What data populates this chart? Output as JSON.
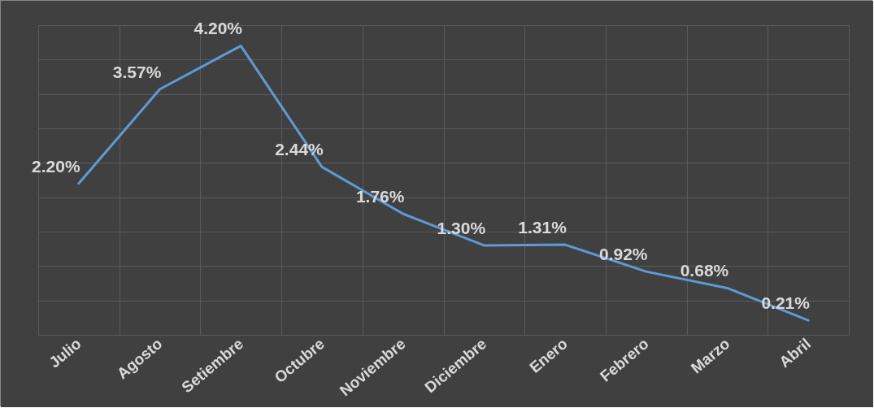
{
  "chart_data": {
    "type": "line",
    "categories": [
      "Julio",
      "Agosto",
      "Setiembre",
      "Octubre",
      "Noviembre",
      "Diciembre",
      "Enero",
      "Febrero",
      "Marzo",
      "Abril"
    ],
    "values": [
      2.2,
      3.57,
      4.2,
      2.44,
      1.76,
      1.3,
      1.31,
      0.92,
      0.68,
      0.21
    ],
    "value_labels": [
      "2.20%",
      "3.57%",
      "4.20%",
      "2.44%",
      "1.76%",
      "1.30%",
      "1.31%",
      "0.92%",
      "0.68%",
      "0.21%"
    ],
    "color": "#5b9bd5",
    "ylim": [
      0,
      4.5
    ],
    "yticks": [
      {
        "value": 0,
        "label": null
      },
      {
        "value": 0.5,
        "label": null
      },
      {
        "value": 1,
        "label": null
      },
      {
        "value": 1.5,
        "label": null
      },
      {
        "value": 2,
        "label": null
      },
      {
        "value": 2.5,
        "label": null
      },
      {
        "value": 3,
        "label": null
      },
      {
        "value": 3.5,
        "label": null
      },
      {
        "value": 4,
        "label": null
      },
      {
        "value": 4.5,
        "label": null
      }
    ],
    "grid": true,
    "tick_labels": "x"
  }
}
